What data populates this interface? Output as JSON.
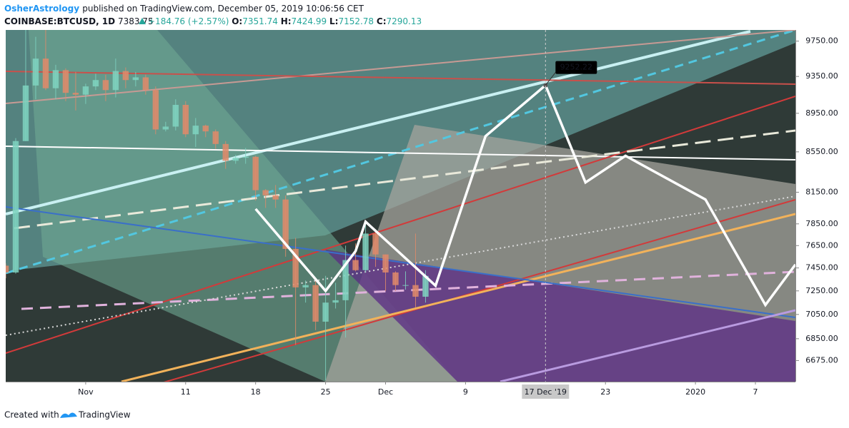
{
  "header": {
    "author": "OsherAstrology",
    "published": "published on TradingView.com, December 05, 2019 10:06:56 CET",
    "symbol": "COINBASE:BTCUSD, 1D",
    "last": "7383.75",
    "change": "+184.76 (+2.57%)",
    "o_label": "O:",
    "o": "7351.74",
    "h_label": "H:",
    "h": "7424.99",
    "l_label": "L:",
    "l": "7152.78",
    "c_label": "C:",
    "c": "7290.13"
  },
  "chart_data": {
    "type": "candlestick",
    "log_scale": true,
    "up_color": "#7fd3c0",
    "down_color": "#e08a6a",
    "x": [
      "2019-10-24",
      "2019-10-25",
      "2019-10-26",
      "2019-10-27",
      "2019-10-28",
      "2019-10-29",
      "2019-10-30",
      "2019-10-31",
      "2019-11-01",
      "2019-11-02",
      "2019-11-03",
      "2019-11-04",
      "2019-11-05",
      "2019-11-06",
      "2019-11-07",
      "2019-11-08",
      "2019-11-09",
      "2019-11-10",
      "2019-11-11",
      "2019-11-12",
      "2019-11-13",
      "2019-11-14",
      "2019-11-15",
      "2019-11-16",
      "2019-11-17",
      "2019-11-18",
      "2019-11-19",
      "2019-11-20",
      "2019-11-21",
      "2019-11-22",
      "2019-11-23",
      "2019-11-24",
      "2019-11-25",
      "2019-11-26",
      "2019-11-27",
      "2019-11-28",
      "2019-11-29",
      "2019-11-30",
      "2019-12-01",
      "2019-12-02",
      "2019-12-03",
      "2019-12-04",
      "2019-12-05"
    ],
    "open": [
      7470,
      7410,
      8660,
      9250,
      9550,
      9220,
      9420,
      9170,
      9150,
      9240,
      9310,
      9200,
      9410,
      9310,
      9340,
      9200,
      8780,
      8810,
      9040,
      8730,
      8820,
      8760,
      8630,
      8460,
      8490,
      8500,
      8170,
      8120,
      8080,
      7620,
      7280,
      7300,
      6990,
      7150,
      7170,
      7520,
      7430,
      7760,
      7570,
      7410,
      7300,
      7300,
      7200
    ],
    "high": [
      7490,
      8690,
      10370,
      9800,
      9940,
      9480,
      9440,
      9400,
      9270,
      9380,
      9370,
      9550,
      9450,
      9400,
      9370,
      9240,
      8860,
      9100,
      9080,
      8900,
      8830,
      8780,
      8660,
      8520,
      8590,
      8510,
      8180,
      8220,
      8120,
      7720,
      7340,
      7340,
      7380,
      7320,
      7650,
      7670,
      7860,
      7800,
      7570,
      7420,
      7420,
      7760,
      7430
    ],
    "low": [
      7360,
      7400,
      8660,
      9100,
      9200,
      9100,
      9080,
      8980,
      9050,
      9200,
      9080,
      9120,
      9220,
      9240,
      9150,
      8730,
      8760,
      8770,
      8700,
      8600,
      8700,
      8580,
      8380,
      8430,
      8430,
      8070,
      8000,
      8000,
      7550,
      6800,
      7150,
      6920,
      6520,
      7100,
      6860,
      7420,
      7410,
      7460,
      7250,
      7250,
      7260,
      7110,
      7150
    ],
    "close": [
      7410,
      8660,
      9250,
      9550,
      9220,
      9420,
      9170,
      9150,
      9240,
      9310,
      9200,
      9410,
      9310,
      9340,
      9200,
      8780,
      8810,
      9040,
      8730,
      8820,
      8760,
      8630,
      8460,
      8490,
      8500,
      8170,
      8120,
      8080,
      7620,
      7280,
      7300,
      6990,
      7150,
      7170,
      7520,
      7430,
      7760,
      7570,
      7410,
      7300,
      7300,
      7200,
      7380
    ],
    "overlay": {
      "type": "line",
      "color": "#ffffff",
      "x": [
        "2019-11-18",
        "2019-11-25",
        "2019-11-28",
        "2019-11-29",
        "2019-12-06",
        "2019-12-11",
        "2019-12-17",
        "2019-12-21",
        "2019-12-25",
        "2020-01-02",
        "2020-01-08",
        "2020-01-11"
      ],
      "values": [
        7990,
        7250,
        7600,
        7870,
        7295,
        8710,
        9252.22,
        8245,
        8510,
        8080,
        7130,
        7480
      ]
    },
    "xlim": [
      "2019-10-24",
      "2020-01-11"
    ],
    "xticks": [
      {
        "value": "2019-11-01",
        "label": "Nov"
      },
      {
        "value": "2019-11-11",
        "label": "11"
      },
      {
        "value": "2019-11-18",
        "label": "18"
      },
      {
        "value": "2019-11-25",
        "label": "25"
      },
      {
        "value": "2019-12-01",
        "label": "Dec"
      },
      {
        "value": "2019-12-09",
        "label": "9"
      },
      {
        "value": "2019-12-23",
        "label": "23"
      },
      {
        "value": "2020-01-01",
        "label": "2020"
      },
      {
        "value": "2020-01-07",
        "label": "7"
      }
    ],
    "crosshair": {
      "value": "2019-12-17",
      "label": "17 Dec '19"
    },
    "ylim": [
      6510,
      9880
    ],
    "yticks": [
      {
        "value": 9750,
        "label": "9750.00"
      },
      {
        "value": 9350,
        "label": "9350.00"
      },
      {
        "value": 8950,
        "label": "8950.00"
      },
      {
        "value": 8550,
        "label": "8550.00"
      },
      {
        "value": 8150,
        "label": "8150.00"
      },
      {
        "value": 7850,
        "label": "7850.00"
      },
      {
        "value": 7650,
        "label": "7650.00"
      },
      {
        "value": 7450,
        "label": "7450.00"
      },
      {
        "value": 7250,
        "label": "7250.00"
      },
      {
        "value": 7050,
        "label": "7050.00"
      },
      {
        "value": 6850,
        "label": "6850.00"
      },
      {
        "value": 6675,
        "label": "6675.00"
      }
    ]
  },
  "footer": {
    "created": "Created with",
    "brand": "TradingView"
  }
}
